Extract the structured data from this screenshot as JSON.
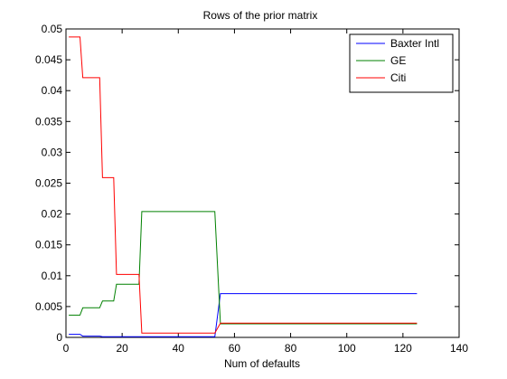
{
  "chart_data": {
    "type": "line",
    "title": "Rows of the prior matrix",
    "xlabel": "Num of defaults",
    "ylabel": "",
    "xlim": [
      0,
      140
    ],
    "ylim": [
      0,
      0.05
    ],
    "xticks": [
      0,
      20,
      40,
      60,
      80,
      100,
      120,
      140
    ],
    "yticks": [
      0,
      0.005,
      0.01,
      0.015,
      0.02,
      0.025,
      0.03,
      0.035,
      0.04,
      0.045,
      0.05
    ],
    "xtick_labels": [
      "0",
      "20",
      "40",
      "60",
      "80",
      "100",
      "120",
      "140"
    ],
    "ytick_labels": [
      "0",
      "0.005",
      "0.01",
      "0.015",
      "0.02",
      "0.025",
      "0.03",
      "0.035",
      "0.04",
      "0.045",
      "0.05"
    ],
    "grid": false,
    "legend_position": "top-right",
    "series": [
      {
        "name": "Baxter Intl",
        "color": "#0000ff",
        "x": [
          1,
          5,
          6,
          12,
          13,
          17,
          18,
          26,
          27,
          53,
          55,
          125
        ],
        "y": [
          0.0005,
          0.0005,
          0.0002,
          0.0002,
          0.0001,
          0.0001,
          0.0001,
          0.0001,
          0.0001,
          0.0001,
          0.0071,
          0.0071
        ]
      },
      {
        "name": "GE",
        "color": "#008000",
        "x": [
          1,
          5,
          6,
          12,
          13,
          17,
          18,
          26,
          27,
          53,
          55,
          125
        ],
        "y": [
          0.0036,
          0.0036,
          0.0048,
          0.0048,
          0.0059,
          0.0059,
          0.0086,
          0.0086,
          0.0204,
          0.0204,
          0.0022,
          0.0022
        ]
      },
      {
        "name": "Citi",
        "color": "#ff0000",
        "x": [
          1,
          5,
          6,
          12,
          13,
          17,
          18,
          26,
          27,
          53,
          55,
          125
        ],
        "y": [
          0.0487,
          0.0487,
          0.0421,
          0.0421,
          0.0259,
          0.0259,
          0.0102,
          0.0102,
          0.0007,
          0.0007,
          0.0023,
          0.0023
        ]
      }
    ]
  }
}
